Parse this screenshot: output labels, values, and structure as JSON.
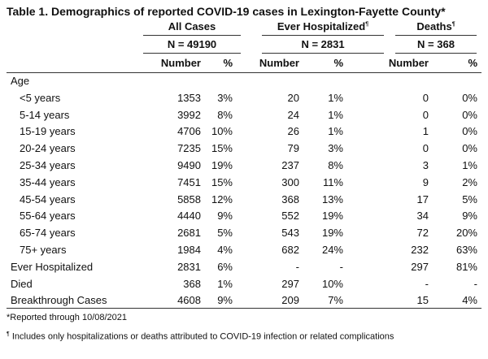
{
  "table": {
    "title": "Table 1. Demographics of reported COVID-19 cases in Lexington-Fayette County*",
    "groups": [
      {
        "label": "All Cases",
        "sup": "",
        "n": "N = 49190"
      },
      {
        "label": "Ever Hospitalized",
        "sup": "¶",
        "n": "N = 2831"
      },
      {
        "label": "Deaths",
        "sup": "¶",
        "n": "N = 368"
      }
    ],
    "subheaders": [
      "Number",
      "%",
      "Number",
      "%",
      "Number",
      "%"
    ],
    "rows": [
      {
        "label": "Age",
        "indent": false,
        "cells": [
          "",
          "",
          "",
          "",
          "",
          ""
        ]
      },
      {
        "label": "<5 years",
        "indent": true,
        "cells": [
          "1353",
          "3%",
          "20",
          "1%",
          "0",
          "0%"
        ]
      },
      {
        "label": "5-14 years",
        "indent": true,
        "cells": [
          "3992",
          "8%",
          "24",
          "1%",
          "0",
          "0%"
        ]
      },
      {
        "label": "15-19 years",
        "indent": true,
        "cells": [
          "4706",
          "10%",
          "26",
          "1%",
          "1",
          "0%"
        ]
      },
      {
        "label": "20-24 years",
        "indent": true,
        "cells": [
          "7235",
          "15%",
          "79",
          "3%",
          "0",
          "0%"
        ]
      },
      {
        "label": "25-34 years",
        "indent": true,
        "cells": [
          "9490",
          "19%",
          "237",
          "8%",
          "3",
          "1%"
        ]
      },
      {
        "label": "35-44 years",
        "indent": true,
        "cells": [
          "7451",
          "15%",
          "300",
          "11%",
          "9",
          "2%"
        ]
      },
      {
        "label": "45-54 years",
        "indent": true,
        "cells": [
          "5858",
          "12%",
          "368",
          "13%",
          "17",
          "5%"
        ]
      },
      {
        "label": "55-64 years",
        "indent": true,
        "cells": [
          "4440",
          "9%",
          "552",
          "19%",
          "34",
          "9%"
        ]
      },
      {
        "label": "65-74 years",
        "indent": true,
        "cells": [
          "2681",
          "5%",
          "543",
          "19%",
          "72",
          "20%"
        ]
      },
      {
        "label": "75+ years",
        "indent": true,
        "cells": [
          "1984",
          "4%",
          "682",
          "24%",
          "232",
          "63%"
        ]
      },
      {
        "label": "Ever Hospitalized",
        "indent": false,
        "cells": [
          "2831",
          "6%",
          "-",
          "-",
          "297",
          "81%"
        ]
      },
      {
        "label": "Died",
        "indent": false,
        "cells": [
          "368",
          "1%",
          "297",
          "10%",
          "-",
          "-"
        ]
      },
      {
        "label": "Breakthrough Cases",
        "indent": false,
        "cells": [
          "4608",
          "9%",
          "209",
          "7%",
          "15",
          "4%"
        ]
      }
    ],
    "footnotes": [
      {
        "mark": "",
        "text": "*Reported through 10/08/2021"
      },
      {
        "mark": "¶",
        "text": " Includes only hospitalizations or deaths attributed to COVID-19 infection or related complications"
      }
    ]
  }
}
